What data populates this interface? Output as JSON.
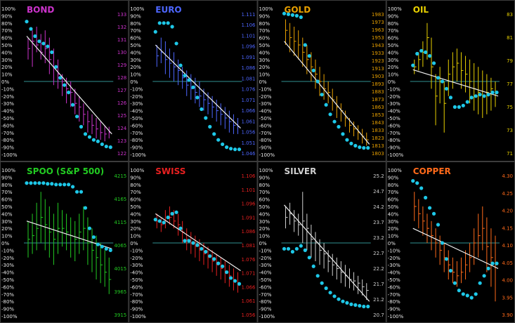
{
  "pct_ticks": [
    "100%",
    "90%",
    "80%",
    "70%",
    "60%",
    "50%",
    "40%",
    "30%",
    "20%",
    "10%",
    "0%",
    "-10%",
    "-20%",
    "-30%",
    "-40%",
    "-50%",
    "-60%",
    "-70%",
    "-80%",
    "-90%",
    "-100%"
  ],
  "colors": {
    "background": "#000000",
    "grid": "#3c3c3c",
    "zero_line": "#2f8f8f",
    "dots": "#1ec8e8",
    "trend": "#f0f0f0"
  },
  "chart_data": [
    {
      "type": "line",
      "title": "BOND",
      "color": "#cc33cc",
      "price_ticks": [
        "133",
        "132",
        "131",
        "130",
        "129",
        "128",
        "127",
        "126",
        "125",
        "124",
        "123",
        "122"
      ],
      "ylim": [
        -100,
        100
      ],
      "oscillator": [
        82,
        72,
        62,
        55,
        52,
        48,
        40,
        20,
        5,
        -5,
        -15,
        -32,
        -48,
        -62,
        -72,
        -76,
        -80,
        -82,
        -86,
        -89,
        -90
      ],
      "trend": [
        62,
        -72
      ],
      "bars": [
        [
          60,
          30,
          45
        ],
        [
          70,
          20,
          55
        ],
        [
          75,
          40,
          50
        ],
        [
          65,
          30,
          40
        ],
        [
          70,
          25,
          45
        ],
        [
          60,
          10,
          30
        ],
        [
          45,
          -5,
          20
        ],
        [
          30,
          -10,
          10
        ],
        [
          10,
          -20,
          0
        ],
        [
          5,
          -30,
          -10
        ],
        [
          0,
          -35,
          -15
        ],
        [
          -10,
          -45,
          -30
        ],
        [
          -20,
          -55,
          -35
        ],
        [
          -30,
          -60,
          -45
        ],
        [
          -40,
          -70,
          -55
        ],
        [
          -45,
          -72,
          -60
        ],
        [
          -50,
          -78,
          -65
        ],
        [
          -55,
          -80,
          -70
        ],
        [
          -60,
          -82,
          -72
        ],
        [
          -62,
          -78,
          -70
        ]
      ]
    },
    {
      "type": "line",
      "title": "EURO",
      "color": "#4d66ff",
      "price_ticks": [
        "1.111",
        "1.106",
        "1.101",
        "1.096",
        "1.091",
        "1.086",
        "1.081",
        "1.076",
        "1.071",
        "1.066",
        "1.061",
        "1.056",
        "1.051",
        "1.046"
      ],
      "ylim": [
        -100,
        100
      ],
      "oscillator": [
        68,
        80,
        80,
        80,
        75,
        52,
        22,
        8,
        2,
        -8,
        -22,
        -38,
        -50,
        -62,
        -72,
        -80,
        -86,
        -90,
        -92,
        -93,
        -93
      ],
      "trend": [
        50,
        -64
      ],
      "bars": [
        [
          50,
          20,
          35
        ],
        [
          60,
          25,
          40
        ],
        [
          55,
          10,
          30
        ],
        [
          45,
          5,
          25
        ],
        [
          40,
          0,
          20
        ],
        [
          30,
          -5,
          15
        ],
        [
          20,
          -10,
          5
        ],
        [
          15,
          -20,
          -5
        ],
        [
          10,
          -25,
          -10
        ],
        [
          5,
          -30,
          -15
        ],
        [
          0,
          -35,
          -20
        ],
        [
          -10,
          -40,
          -25
        ],
        [
          -15,
          -45,
          -30
        ],
        [
          -20,
          -50,
          -35
        ],
        [
          -25,
          -55,
          -40
        ],
        [
          -30,
          -60,
          -45
        ],
        [
          -35,
          -65,
          -50
        ],
        [
          -40,
          -70,
          -55
        ],
        [
          -45,
          -72,
          -60
        ],
        [
          -50,
          -72,
          -62
        ]
      ]
    },
    {
      "type": "line",
      "title": "GOLD",
      "color": "#e8a000",
      "price_ticks": [
        "1983",
        "1973",
        "1963",
        "1953",
        "1943",
        "1933",
        "1923",
        "1913",
        "1903",
        "1893",
        "1883",
        "1873",
        "1863",
        "1853",
        "1843",
        "1833",
        "1823",
        "1813",
        "1803"
      ],
      "ylim": [
        -100,
        100
      ],
      "oscillator": [
        93,
        92,
        91,
        90,
        88,
        50,
        35,
        15,
        0,
        -18,
        -32,
        -45,
        -55,
        -62,
        -72,
        -80,
        -85,
        -88,
        -90,
        -91,
        -91
      ],
      "trend": [
        55,
        -86
      ],
      "bars": [
        [
          85,
          50,
          70
        ],
        [
          80,
          40,
          60
        ],
        [
          75,
          35,
          55
        ],
        [
          70,
          30,
          50
        ],
        [
          60,
          20,
          40
        ],
        [
          50,
          10,
          30
        ],
        [
          40,
          0,
          20
        ],
        [
          30,
          -10,
          10
        ],
        [
          20,
          -20,
          0
        ],
        [
          10,
          -25,
          -10
        ],
        [
          0,
          -30,
          -15
        ],
        [
          -10,
          -40,
          -25
        ],
        [
          -20,
          -50,
          -35
        ],
        [
          -30,
          -55,
          -40
        ],
        [
          -40,
          -62,
          -50
        ],
        [
          -50,
          -70,
          -60
        ],
        [
          -55,
          -75,
          -65
        ],
        [
          -60,
          -80,
          -70
        ],
        [
          -65,
          -85,
          -75
        ],
        [
          -70,
          -88,
          -80
        ]
      ]
    },
    {
      "type": "line",
      "title": "OIL",
      "color": "#e8d000",
      "price_ticks": [
        "83",
        "81",
        "79",
        "77",
        "75",
        "73",
        "71"
      ],
      "ylim": [
        -100,
        100
      ],
      "oscillator": [
        22,
        38,
        42,
        40,
        35,
        25,
        5,
        0,
        -10,
        -22,
        -35,
        -35,
        -33,
        -28,
        -22,
        -20,
        -18,
        -20,
        -18,
        -15,
        -15
      ],
      "trend": [
        16,
        -20
      ],
      "bars": [
        [
          30,
          10,
          20
        ],
        [
          40,
          15,
          30
        ],
        [
          55,
          20,
          40
        ],
        [
          80,
          30,
          60
        ],
        [
          60,
          -10,
          20
        ],
        [
          10,
          -60,
          -20
        ],
        [
          20,
          -30,
          0
        ],
        [
          0,
          -70,
          -30
        ],
        [
          30,
          -20,
          10
        ],
        [
          40,
          -10,
          20
        ],
        [
          45,
          0,
          25
        ],
        [
          40,
          -10,
          15
        ],
        [
          35,
          -15,
          10
        ],
        [
          30,
          -30,
          0
        ],
        [
          25,
          -40,
          -10
        ],
        [
          20,
          -45,
          -15
        ],
        [
          15,
          -50,
          -20
        ],
        [
          10,
          -45,
          -15
        ],
        [
          5,
          -40,
          -10
        ],
        [
          0,
          -35,
          -15
        ]
      ]
    },
    {
      "type": "line",
      "title": "SPOO (S&P 500)",
      "color": "#22cc22",
      "price_ticks": [
        "4215",
        "4165",
        "4115",
        "4065",
        "4015",
        "3965",
        "3915"
      ],
      "ylim": [
        -100,
        100
      ],
      "oscillator": [
        82,
        82,
        82,
        82,
        82,
        81,
        81,
        80,
        80,
        80,
        80,
        77,
        70,
        70,
        48,
        20,
        8,
        -2,
        -5,
        -8,
        -10
      ],
      "trend": [
        30,
        -8
      ],
      "bars": [
        [
          30,
          -20,
          5
        ],
        [
          40,
          -15,
          10
        ],
        [
          55,
          -10,
          20
        ],
        [
          70,
          0,
          35
        ],
        [
          60,
          -10,
          25
        ],
        [
          50,
          -20,
          15
        ],
        [
          40,
          -30,
          5
        ],
        [
          55,
          -15,
          20
        ],
        [
          45,
          -5,
          20
        ],
        [
          40,
          -10,
          15
        ],
        [
          35,
          -20,
          10
        ],
        [
          30,
          -25,
          5
        ],
        [
          40,
          -15,
          15
        ],
        [
          50,
          -10,
          20
        ],
        [
          35,
          -30,
          0
        ],
        [
          20,
          -40,
          -10
        ],
        [
          10,
          -50,
          -20
        ],
        [
          0,
          -55,
          -30
        ],
        [
          -10,
          -60,
          -40
        ],
        [
          -20,
          -70,
          -50
        ]
      ]
    },
    {
      "type": "line",
      "title": "SWISS",
      "color": "#e82020",
      "price_ticks": [
        "1.106",
        "1.101",
        "1.096",
        "1.091",
        "1.086",
        "1.081",
        "1.076",
        "1.071",
        "1.066",
        "1.061",
        "1.056"
      ],
      "ylim": [
        -100,
        100
      ],
      "oscillator": [
        32,
        30,
        28,
        35,
        40,
        42,
        20,
        3,
        3,
        0,
        -3,
        -8,
        -12,
        -18,
        -22,
        -28,
        -32,
        -40,
        -48,
        -52,
        -56
      ],
      "trend": [
        40,
        -38
      ],
      "bars": [
        [
          40,
          20,
          30
        ],
        [
          35,
          15,
          25
        ],
        [
          45,
          20,
          30
        ],
        [
          50,
          25,
          35
        ],
        [
          45,
          20,
          30
        ],
        [
          40,
          10,
          25
        ],
        [
          30,
          0,
          15
        ],
        [
          20,
          -10,
          5
        ],
        [
          15,
          -15,
          0
        ],
        [
          10,
          -20,
          -5
        ],
        [
          5,
          -25,
          -10
        ],
        [
          0,
          -30,
          -15
        ],
        [
          -5,
          -35,
          -20
        ],
        [
          -10,
          -40,
          -25
        ],
        [
          -15,
          -45,
          -30
        ],
        [
          -20,
          -50,
          -35
        ],
        [
          -25,
          -55,
          -40
        ],
        [
          -30,
          -60,
          -45
        ],
        [
          -35,
          -65,
          -50
        ],
        [
          -40,
          -68,
          -55
        ]
      ]
    },
    {
      "type": "line",
      "title": "SILVER",
      "color": "#cfcfcf",
      "price_ticks": [
        "25.2",
        "24.7",
        "24.2",
        "23.7",
        "23.2",
        "22.7",
        "22.2",
        "21.7",
        "21.2",
        "20.7"
      ],
      "ylim": [
        -100,
        100
      ],
      "oscillator": [
        -8,
        -8,
        -12,
        -8,
        -4,
        -10,
        -20,
        -32,
        -45,
        -55,
        -62,
        -68,
        -73,
        -77,
        -80,
        -82,
        -84,
        -85,
        -86,
        -87,
        -87
      ],
      "trend": [
        52,
        -80
      ],
      "bars": [
        [
          50,
          20,
          35
        ],
        [
          55,
          25,
          40
        ],
        [
          45,
          15,
          30
        ],
        [
          40,
          10,
          25
        ],
        [
          70,
          0,
          30
        ],
        [
          40,
          -10,
          20
        ],
        [
          25,
          -20,
          5
        ],
        [
          15,
          -25,
          0
        ],
        [
          5,
          -30,
          -10
        ],
        [
          0,
          -35,
          -15
        ],
        [
          -10,
          -40,
          -25
        ],
        [
          -15,
          -45,
          -30
        ],
        [
          -20,
          -50,
          -35
        ],
        [
          -25,
          -55,
          -40
        ],
        [
          -30,
          -60,
          -45
        ],
        [
          -35,
          -62,
          -50
        ],
        [
          -40,
          -65,
          -52
        ],
        [
          -45,
          -70,
          -55
        ],
        [
          -50,
          -72,
          -60
        ],
        [
          -55,
          -78,
          -65
        ]
      ]
    },
    {
      "type": "line",
      "title": "COPPER",
      "color": "#ff6a1a",
      "price_ticks": [
        "4.30",
        "4.25",
        "4.20",
        "4.15",
        "4.10",
        "4.05",
        "4.00",
        "3.95",
        "3.90"
      ],
      "ylim": [
        -100,
        100
      ],
      "oscillator": [
        85,
        82,
        75,
        62,
        48,
        40,
        25,
        0,
        -22,
        -38,
        -55,
        -65,
        -70,
        -72,
        -75,
        -70,
        -55,
        -45,
        -35,
        -28,
        -28
      ],
      "trend": [
        20,
        -35
      ],
      "bars": [
        [
          70,
          30,
          50
        ],
        [
          60,
          20,
          40
        ],
        [
          50,
          10,
          30
        ],
        [
          40,
          0,
          20
        ],
        [
          30,
          -10,
          10
        ],
        [
          20,
          -20,
          0
        ],
        [
          10,
          -30,
          -10
        ],
        [
          0,
          -40,
          -20
        ],
        [
          -10,
          -50,
          -30
        ],
        [
          -20,
          -55,
          -40
        ],
        [
          -25,
          -60,
          -45
        ],
        [
          -20,
          -55,
          -40
        ],
        [
          -10,
          -50,
          -30
        ],
        [
          0,
          -40,
          -20
        ],
        [
          20,
          -30,
          0
        ],
        [
          40,
          -20,
          10
        ],
        [
          50,
          -10,
          20
        ],
        [
          35,
          -40,
          -5
        ],
        [
          20,
          -60,
          -20
        ],
        [
          10,
          -80,
          -30
        ]
      ]
    }
  ]
}
